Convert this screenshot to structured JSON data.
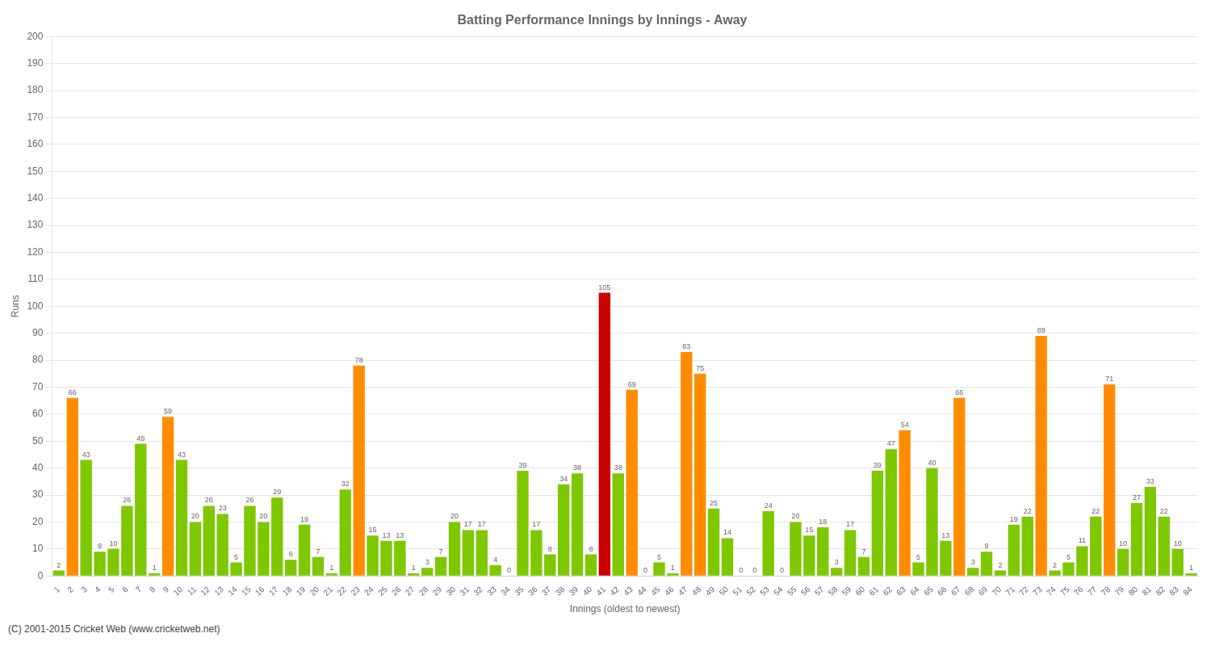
{
  "chart_data": {
    "type": "bar",
    "title": "Batting Performance Innings by Innings - Away",
    "x_label": "Innings (oldest to newest)",
    "y_label": "Runs",
    "annotations": [
      "(C) 2001-2015 Cricket Web (www.cricketweb.net)"
    ],
    "categories": [
      "1",
      "2",
      "3",
      "4",
      "5",
      "6",
      "7",
      "8",
      "9",
      "10",
      "11",
      "12",
      "13",
      "14",
      "15",
      "16",
      "17",
      "18",
      "19",
      "20",
      "21",
      "22",
      "23",
      "24",
      "25",
      "26",
      "27",
      "28",
      "29",
      "30",
      "31",
      "32",
      "33",
      "34",
      "35",
      "36",
      "37",
      "38",
      "39",
      "40",
      "41",
      "42",
      "43",
      "44",
      "45",
      "46",
      "47",
      "48",
      "49",
      "50",
      "51",
      "52",
      "53",
      "54",
      "55",
      "56",
      "57",
      "58",
      "59",
      "60",
      "61",
      "62",
      "63",
      "64",
      "65",
      "66",
      "67",
      "68",
      "69",
      "70",
      "71",
      "72",
      "73",
      "74",
      "75",
      "76",
      "77",
      "78",
      "79",
      "80",
      "81",
      "82",
      "83",
      "84"
    ],
    "values": [
      2,
      66,
      43,
      9,
      10,
      26,
      49,
      1,
      59,
      43,
      20,
      26,
      23,
      5,
      26,
      20,
      29,
      6,
      19,
      7,
      1,
      32,
      78,
      15,
      13,
      13,
      1,
      3,
      7,
      20,
      17,
      17,
      4,
      0,
      39,
      17,
      8,
      34,
      38,
      8,
      105,
      38,
      69,
      0,
      5,
      1,
      83,
      75,
      25,
      14,
      0,
      0,
      24,
      0,
      20,
      15,
      18,
      3,
      17,
      7,
      39,
      47,
      54,
      5,
      40,
      13,
      66,
      3,
      9,
      2,
      19,
      22,
      89,
      2,
      5,
      11,
      22,
      71,
      10,
      27,
      33,
      22,
      10,
      1
    ],
    "colors": [
      "#7dc800",
      "#ff8c00",
      "#7dc800",
      "#7dc800",
      "#7dc800",
      "#7dc800",
      "#7dc800",
      "#7dc800",
      "#ff8c00",
      "#7dc800",
      "#7dc800",
      "#7dc800",
      "#7dc800",
      "#7dc800",
      "#7dc800",
      "#7dc800",
      "#7dc800",
      "#7dc800",
      "#7dc800",
      "#7dc800",
      "#7dc800",
      "#7dc800",
      "#ff8c00",
      "#7dc800",
      "#7dc800",
      "#7dc800",
      "#7dc800",
      "#7dc800",
      "#7dc800",
      "#7dc800",
      "#7dc800",
      "#7dc800",
      "#7dc800",
      "#7dc800",
      "#7dc800",
      "#7dc800",
      "#7dc800",
      "#7dc800",
      "#7dc800",
      "#7dc800",
      "#cc0000",
      "#7dc800",
      "#ff8c00",
      "#7dc800",
      "#7dc800",
      "#7dc800",
      "#ff8c00",
      "#ff8c00",
      "#7dc800",
      "#7dc800",
      "#7dc800",
      "#7dc800",
      "#7dc800",
      "#7dc800",
      "#7dc800",
      "#7dc800",
      "#7dc800",
      "#7dc800",
      "#7dc800",
      "#7dc800",
      "#7dc800",
      "#7dc800",
      "#ff8c00",
      "#7dc800",
      "#7dc800",
      "#7dc800",
      "#ff8c00",
      "#7dc800",
      "#7dc800",
      "#7dc800",
      "#7dc800",
      "#7dc800",
      "#ff8c00",
      "#7dc800",
      "#7dc800",
      "#7dc800",
      "#7dc800",
      "#ff8c00",
      "#7dc800",
      "#7dc800",
      "#7dc800",
      "#7dc800",
      "#7dc800",
      "#7dc800"
    ],
    "ylim": [
      0,
      200
    ],
    "yticks": [
      0,
      10,
      20,
      30,
      40,
      50,
      60,
      70,
      80,
      90,
      100,
      110,
      120,
      130,
      140,
      150,
      160,
      170,
      180,
      190,
      200
    ],
    "grid": true,
    "data_labels": true
  }
}
